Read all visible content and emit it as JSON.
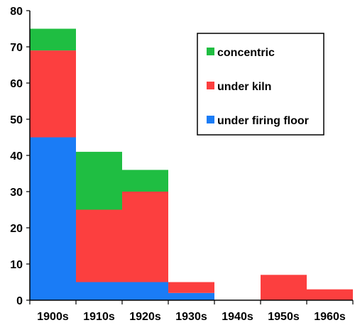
{
  "chart_data": {
    "type": "bar",
    "stacked": true,
    "categories": [
      "1900s",
      "1910s",
      "1920s",
      "1930s",
      "1940s",
      "1950s",
      "1960s"
    ],
    "series": [
      {
        "name": "under firing floor",
        "color": "#1a7cf6",
        "values": [
          45,
          5,
          5,
          2,
          0,
          0,
          0
        ]
      },
      {
        "name": "under kiln",
        "color": "#fc3f3f",
        "values": [
          24,
          20,
          25,
          3,
          0,
          7,
          3
        ]
      },
      {
        "name": "concentric",
        "color": "#1fbe42",
        "values": [
          6,
          16,
          6,
          0,
          0,
          0,
          0
        ]
      }
    ],
    "ylim": [
      0,
      80
    ],
    "yticks": [
      0,
      10,
      20,
      30,
      40,
      50,
      60,
      70,
      80
    ],
    "grid": false,
    "legend": {
      "placement": "top-right",
      "order": [
        "concentric",
        "under kiln",
        "under firing floor"
      ]
    },
    "title": "",
    "xlabel": "",
    "ylabel": ""
  }
}
